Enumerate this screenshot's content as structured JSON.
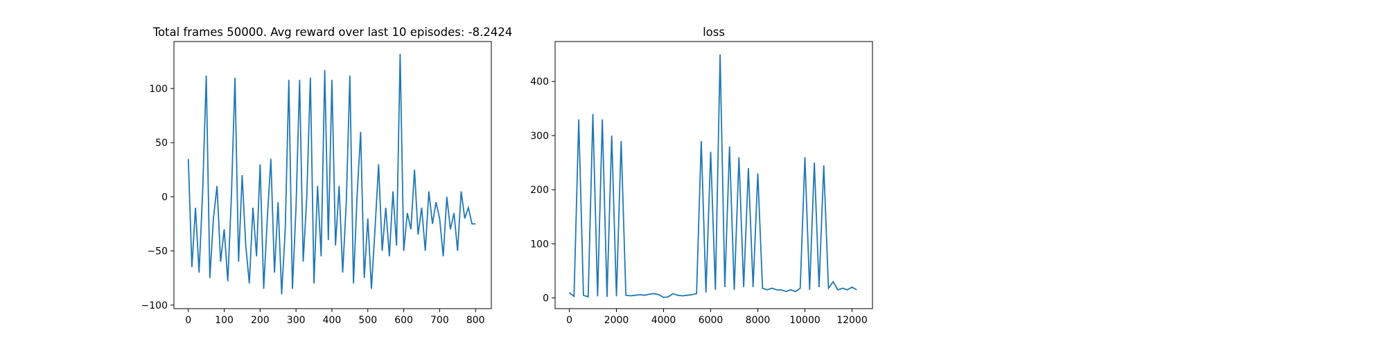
{
  "chart_data": [
    {
      "type": "line",
      "title": "Total frames 50000. Avg reward over last 10 episodes: -8.2424",
      "x": [
        0,
        10,
        20,
        30,
        40,
        50,
        60,
        70,
        80,
        90,
        100,
        110,
        120,
        130,
        140,
        150,
        160,
        170,
        180,
        190,
        200,
        210,
        220,
        230,
        240,
        250,
        260,
        270,
        280,
        290,
        300,
        310,
        320,
        330,
        340,
        350,
        360,
        370,
        380,
        390,
        400,
        410,
        420,
        430,
        440,
        450,
        460,
        470,
        480,
        490,
        500,
        510,
        520,
        530,
        540,
        550,
        560,
        570,
        580,
        590,
        600,
        610,
        620,
        630,
        640,
        650,
        660,
        670,
        680,
        690,
        700,
        710,
        720,
        730,
        740,
        750,
        760,
        770,
        780,
        790,
        800
      ],
      "series": [
        {
          "color": "#1f77b4",
          "values": [
            35,
            -65,
            -10,
            -70,
            5,
            112,
            -75,
            -20,
            10,
            -60,
            -30,
            -78,
            0,
            110,
            -60,
            20,
            -45,
            -80,
            -10,
            -55,
            30,
            -85,
            -20,
            35,
            -70,
            -5,
            -90,
            -30,
            108,
            -85,
            -10,
            108,
            -60,
            0,
            110,
            -80,
            10,
            -55,
            117,
            -40,
            108,
            -45,
            10,
            -70,
            -5,
            112,
            -80,
            0,
            60,
            -75,
            -20,
            -85,
            -30,
            30,
            -50,
            -10,
            -55,
            5,
            -45,
            132,
            -50,
            -15,
            -30,
            25,
            -35,
            -10,
            -50,
            5,
            -25,
            -5,
            -20,
            -55,
            0,
            -30,
            -15,
            -50,
            5,
            -20,
            -10,
            -25,
            -25
          ]
        }
      ],
      "xlim": [
        -40,
        844
      ],
      "ylim": [
        -103.3,
        143.4
      ],
      "xticks": [
        0,
        100,
        200,
        300,
        400,
        500,
        600,
        700,
        800
      ],
      "yticks": [
        {
          "value": -100,
          "label": "−100"
        },
        {
          "value": -50,
          "label": "−50"
        },
        0,
        50,
        100
      ]
    },
    {
      "type": "line",
      "title": "loss",
      "x": [
        0,
        200,
        400,
        600,
        800,
        1000,
        1200,
        1400,
        1600,
        1800,
        2000,
        2200,
        2400,
        2600,
        2800,
        3000,
        3200,
        3400,
        3600,
        3800,
        4000,
        4200,
        4400,
        4600,
        4800,
        5000,
        5200,
        5400,
        5600,
        5800,
        6000,
        6200,
        6400,
        6600,
        6800,
        7000,
        7200,
        7400,
        7600,
        7800,
        8000,
        8200,
        8400,
        8600,
        8800,
        9000,
        9200,
        9400,
        9600,
        9800,
        10000,
        10200,
        10400,
        10600,
        10800,
        11000,
        11200,
        11400,
        11600,
        11800,
        12000,
        12200
      ],
      "series": [
        {
          "color": "#1f77b4",
          "values": [
            10,
            3,
            330,
            5,
            2,
            340,
            3,
            330,
            2,
            300,
            3,
            290,
            5,
            4,
            5,
            6,
            5,
            7,
            8,
            6,
            1,
            2,
            8,
            5,
            4,
            5,
            6,
            8,
            290,
            10,
            270,
            15,
            450,
            20,
            280,
            15,
            260,
            20,
            240,
            20,
            230,
            18,
            15,
            18,
            15,
            15,
            12,
            15,
            12,
            18,
            260,
            15,
            250,
            20,
            245,
            18,
            30,
            15,
            18,
            15,
            20,
            15
          ]
        }
      ],
      "xlim": [
        -604,
        12868
      ],
      "ylim": [
        -19.7,
        473.8
      ],
      "xticks": [
        0,
        2000,
        4000,
        6000,
        8000,
        10000,
        12000
      ],
      "yticks": [
        0,
        100,
        200,
        300,
        400
      ]
    }
  ]
}
